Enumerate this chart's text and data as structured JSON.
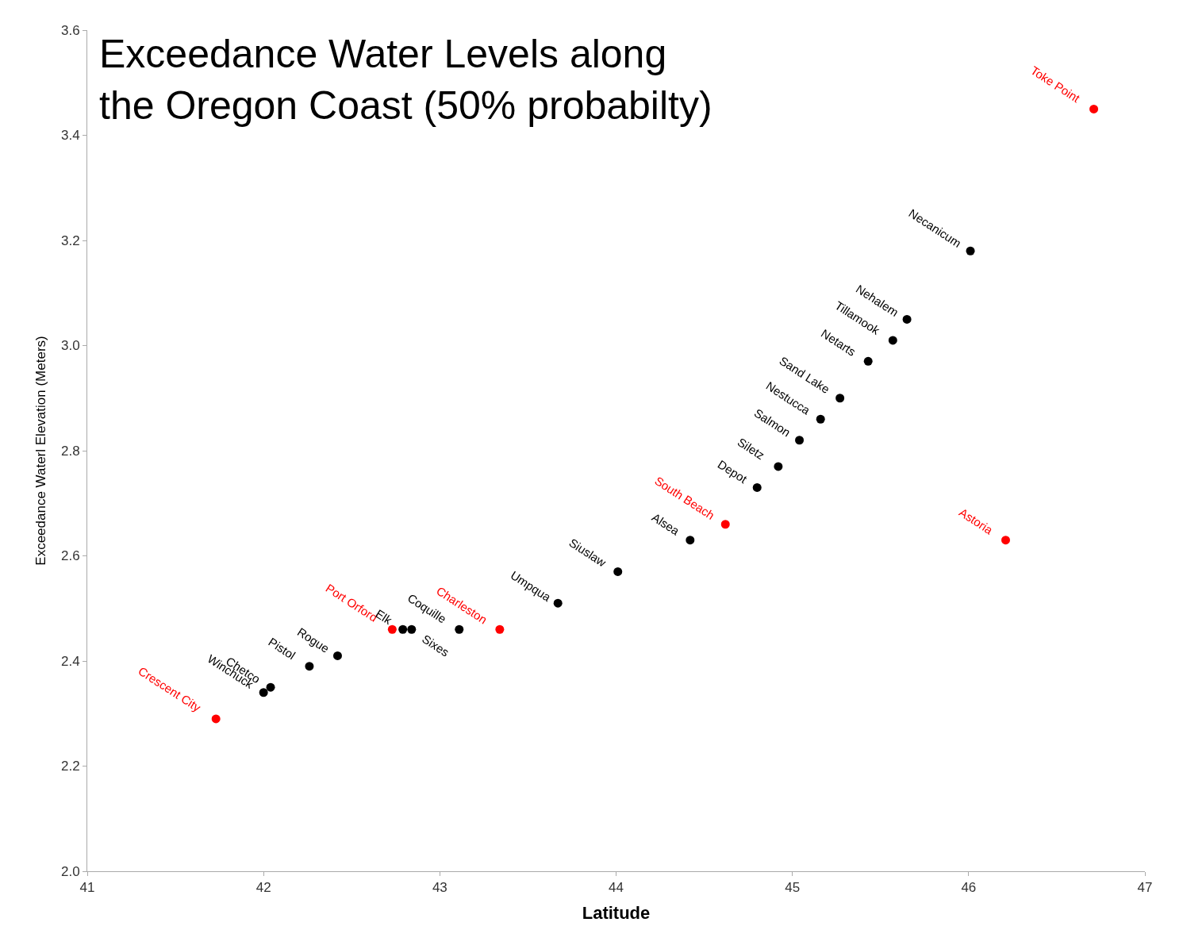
{
  "chart_data": {
    "type": "scatter",
    "title": "Exceedance Water Levels along\nthe Oregon Coast (50% probabilty)",
    "xlabel": "Latitude",
    "ylabel": "Exceedance Waterl Elevation (Meters)",
    "xlim": [
      41,
      47
    ],
    "xticks": [
      41,
      42,
      43,
      44,
      45,
      46,
      47
    ],
    "ylim": [
      2.0,
      3.6
    ],
    "yticks": [
      {
        "value": 2.0,
        "label": "2.0"
      },
      2.2,
      2.4,
      2.6,
      2.8,
      {
        "value": 3.0,
        "label": "3.0"
      },
      3.2,
      3.4,
      3.6
    ],
    "legend": false,
    "marker": "circle",
    "series": [
      {
        "color": "#ff0000",
        "x": [
          41.73,
          42.73,
          43.34,
          44.62,
          46.21,
          46.71
        ],
        "values": [
          2.29,
          2.46,
          2.46,
          2.66,
          2.63,
          3.45
        ]
      },
      {
        "color": "#000000",
        "x": [
          42.0,
          42.04,
          42.26,
          42.42,
          42.79,
          42.84,
          43.11,
          43.67,
          44.01,
          44.42,
          44.8,
          44.92,
          45.04,
          45.16,
          45.27,
          45.43,
          45.57,
          45.65,
          46.01
        ],
        "values": [
          2.34,
          2.35,
          2.39,
          2.41,
          2.46,
          2.46,
          2.46,
          2.51,
          2.57,
          2.63,
          2.73,
          2.77,
          2.82,
          2.86,
          2.9,
          2.97,
          3.01,
          3.05,
          3.18
        ]
      }
    ],
    "annotations": [
      {
        "text": "Crescent City",
        "x": 41.73,
        "y": 2.29
      },
      {
        "text": "Port Orford",
        "x": 42.73,
        "y": 2.46
      },
      {
        "text": "Charleston",
        "x": 43.34,
        "y": 2.46
      },
      {
        "text": "South Beach",
        "x": 44.62,
        "y": 2.66
      },
      {
        "text": "Astoria",
        "x": 46.21,
        "y": 2.63
      },
      {
        "text": "Toke Point",
        "x": 46.71,
        "y": 3.45
      },
      {
        "text": "Winchuck",
        "x": 42.0,
        "y": 2.34
      },
      {
        "text": "Chetco",
        "x": 42.04,
        "y": 2.35
      },
      {
        "text": "Pistol",
        "x": 42.26,
        "y": 2.39
      },
      {
        "text": "Rogue",
        "x": 42.42,
        "y": 2.41
      },
      {
        "text": "Elk",
        "x": 42.79,
        "y": 2.46
      },
      {
        "text": "Sixes",
        "x": 42.84,
        "y": 2.46
      },
      {
        "text": "Coquille",
        "x": 43.11,
        "y": 2.46
      },
      {
        "text": "Umpqua",
        "x": 43.67,
        "y": 2.51
      },
      {
        "text": "Siuslaw",
        "x": 44.01,
        "y": 2.57
      },
      {
        "text": "Alsea",
        "x": 44.42,
        "y": 2.63
      },
      {
        "text": "Depot",
        "x": 44.8,
        "y": 2.73
      },
      {
        "text": "Siletz",
        "x": 44.92,
        "y": 2.77
      },
      {
        "text": "Salmon",
        "x": 45.04,
        "y": 2.82
      },
      {
        "text": "Nestucca",
        "x": 45.16,
        "y": 2.86
      },
      {
        "text": "Sand Lake",
        "x": 45.27,
        "y": 2.9
      },
      {
        "text": "Netarts",
        "x": 45.43,
        "y": 2.97
      },
      {
        "text": "Tillamook",
        "x": 45.57,
        "y": 3.01
      },
      {
        "text": "Nehalem",
        "x": 45.65,
        "y": 3.05
      },
      {
        "text": "Necanicum",
        "x": 46.01,
        "y": 3.18
      }
    ]
  }
}
